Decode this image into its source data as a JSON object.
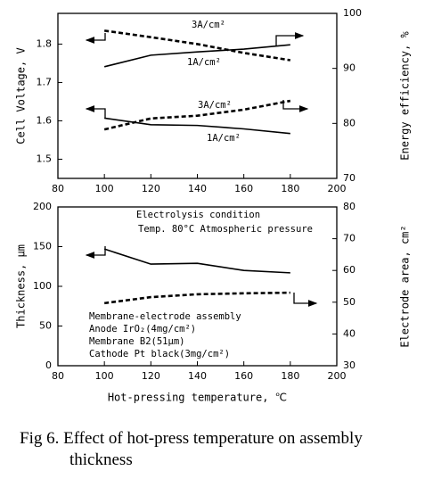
{
  "chart_data": [
    {
      "type": "line",
      "ylabel": "Cell Voltage, V",
      "y2label": "Energy efficiency, %",
      "x": [
        100,
        120,
        140,
        160,
        180
      ],
      "xlim": [
        80,
        200
      ],
      "xticks": [
        80,
        100,
        120,
        140,
        160,
        180,
        200
      ],
      "ylim": [
        1.45,
        1.88
      ],
      "yticks": [
        1.5,
        1.6,
        1.7,
        1.8
      ],
      "y2lim": [
        70,
        100
      ],
      "y2ticks": [
        70,
        80,
        90,
        100
      ],
      "series": [
        {
          "name": "3A/cm²",
          "color": "#000000",
          "style": "dashed",
          "values": [
            1.835,
            1.818,
            1.8,
            1.777,
            1.758
          ]
        },
        {
          "name": "1A/cm²",
          "color": "#000000",
          "style": "solid",
          "axis": "y2",
          "values": [
            90.3,
            92.4,
            93.0,
            93.5,
            94.3
          ]
        },
        {
          "name": "3A/cm²",
          "color": "#000000",
          "style": "dashed",
          "axis": "y2",
          "values": [
            78.9,
            80.9,
            81.4,
            82.5,
            84.1
          ]
        },
        {
          "name": "1A/cm²",
          "color": "#000000",
          "style": "solid",
          "values": [
            1.607,
            1.59,
            1.588,
            1.579,
            1.567
          ]
        }
      ]
    },
    {
      "type": "line",
      "xlabel": "Hot-pressing temperature, ℃",
      "ylabel": "Thickness, μm",
      "y2label": "Electrode area, cm²",
      "x": [
        100,
        120,
        140,
        160,
        180
      ],
      "xlim": [
        80,
        200
      ],
      "xticks": [
        80,
        100,
        120,
        140,
        160,
        180,
        200
      ],
      "ylim": [
        0,
        200
      ],
      "yticks": [
        0,
        50,
        100,
        150,
        200
      ],
      "y2lim": [
        30,
        80
      ],
      "y2ticks": [
        30,
        40,
        50,
        60,
        70,
        80
      ],
      "series": [
        {
          "color": "#000000",
          "style": "solid",
          "values": [
            147,
            128,
            129,
            120,
            117
          ]
        },
        {
          "color": "#000000",
          "style": "dashed",
          "axis": "y2",
          "values": [
            49.7,
            51.6,
            52.5,
            52.8,
            53.0
          ]
        }
      ],
      "annotations": [
        "Electrolysis condition",
        "Temp. 80°C  Atmospheric pressure",
        "Membrane-electrode assembly",
        "Anode    IrO₂(4mg/cm²)",
        "Membrane  B2(51μm)",
        "Cathode   Pt black(3mg/cm²)"
      ]
    }
  ],
  "caption": "Fig 6. Effect of hot-press temperature on assembly thickness"
}
